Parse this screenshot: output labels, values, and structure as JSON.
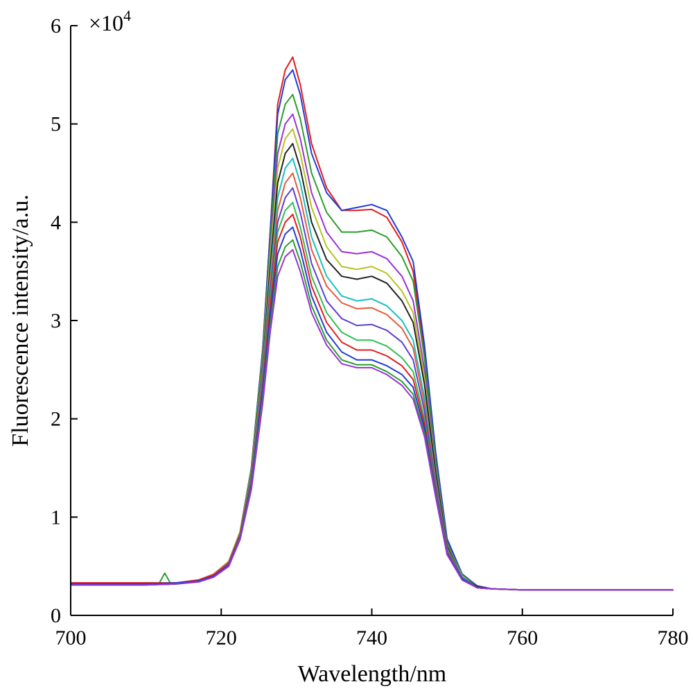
{
  "chart_data": {
    "type": "line",
    "title": "",
    "xlabel": "Wavelength/nm",
    "ylabel": "Fluorescence intensity/a.u.",
    "y_multiplier_base": "×10",
    "y_multiplier_exp": "4",
    "xlim": [
      700,
      780
    ],
    "ylim": [
      0,
      6
    ],
    "x_ticks": [
      "700",
      "720",
      "740",
      "760",
      "780"
    ],
    "y_ticks": [
      "0",
      "1",
      "2",
      "3",
      "4",
      "5",
      "6"
    ],
    "grid": false,
    "legend": "none",
    "colors": [
      "#e41a1c",
      "#1f3bd6",
      "#2a9d2a",
      "#9b30d9",
      "#b5c21e",
      "#222222",
      "#17bfc0",
      "#e65a3a",
      "#5a3fd1",
      "#2fbf4f"
    ],
    "x": [
      700,
      705,
      710,
      714,
      717,
      719,
      721,
      722.5,
      724,
      725.5,
      726.5,
      727.5,
      728.5,
      729.5,
      730.5,
      732,
      734,
      736,
      738,
      740,
      742,
      744,
      745.5,
      747,
      748.5,
      750,
      752,
      754,
      756,
      760,
      770,
      780
    ],
    "series": [
      {
        "values": [
          0.33,
          0.33,
          0.33,
          0.33,
          0.36,
          0.42,
          0.55,
          0.85,
          1.5,
          2.7,
          3.9,
          5.2,
          5.55,
          5.68,
          5.4,
          4.8,
          4.35,
          4.12,
          4.12,
          4.13,
          4.05,
          3.8,
          3.5,
          2.7,
          1.6,
          0.75,
          0.42,
          0.3,
          0.27,
          0.26,
          0.26,
          0.26
        ]
      },
      {
        "values": [
          0.33,
          0.33,
          0.33,
          0.33,
          0.36,
          0.42,
          0.55,
          0.85,
          1.5,
          2.7,
          3.9,
          5.1,
          5.45,
          5.55,
          5.3,
          4.7,
          4.3,
          4.12,
          4.15,
          4.18,
          4.12,
          3.85,
          3.6,
          2.75,
          1.65,
          0.78,
          0.42,
          0.3,
          0.27,
          0.26,
          0.26,
          0.26
        ]
      },
      {
        "values": [
          0.32,
          0.32,
          0.32,
          0.33,
          0.35,
          0.41,
          0.54,
          0.84,
          1.48,
          2.65,
          3.8,
          4.9,
          5.2,
          5.3,
          5.05,
          4.5,
          4.1,
          3.9,
          3.9,
          3.92,
          3.85,
          3.65,
          3.4,
          2.62,
          1.58,
          0.74,
          0.41,
          0.29,
          0.27,
          0.26,
          0.26,
          0.26
        ]
      },
      {
        "values": [
          0.31,
          0.31,
          0.31,
          0.32,
          0.35,
          0.41,
          0.53,
          0.83,
          1.45,
          2.6,
          3.7,
          4.7,
          5.0,
          5.1,
          4.85,
          4.3,
          3.9,
          3.7,
          3.68,
          3.7,
          3.63,
          3.45,
          3.2,
          2.5,
          1.52,
          0.72,
          0.4,
          0.29,
          0.27,
          0.26,
          0.26,
          0.26
        ]
      },
      {
        "values": [
          0.33,
          0.33,
          0.33,
          0.33,
          0.36,
          0.42,
          0.55,
          0.85,
          1.47,
          2.6,
          3.65,
          4.55,
          4.85,
          4.95,
          4.7,
          4.15,
          3.75,
          3.55,
          3.52,
          3.55,
          3.48,
          3.3,
          3.08,
          2.42,
          1.48,
          0.71,
          0.4,
          0.29,
          0.27,
          0.26,
          0.26,
          0.26
        ]
      },
      {
        "values": [
          0.32,
          0.32,
          0.32,
          0.33,
          0.35,
          0.41,
          0.54,
          0.83,
          1.44,
          2.55,
          3.55,
          4.4,
          4.7,
          4.8,
          4.55,
          4.0,
          3.62,
          3.45,
          3.42,
          3.45,
          3.38,
          3.2,
          2.98,
          2.35,
          1.45,
          0.7,
          0.39,
          0.29,
          0.27,
          0.26,
          0.26,
          0.26
        ]
      },
      {
        "values": [
          0.31,
          0.31,
          0.31,
          0.32,
          0.35,
          0.41,
          0.53,
          0.82,
          1.42,
          2.5,
          3.45,
          4.25,
          4.55,
          4.65,
          4.4,
          3.85,
          3.45,
          3.25,
          3.2,
          3.22,
          3.15,
          3.0,
          2.8,
          2.22,
          1.38,
          0.68,
          0.39,
          0.28,
          0.27,
          0.26,
          0.26,
          0.26
        ]
      },
      {
        "values": [
          0.33,
          0.33,
          0.33,
          0.33,
          0.36,
          0.42,
          0.54,
          0.82,
          1.4,
          2.45,
          3.38,
          4.12,
          4.4,
          4.5,
          4.25,
          3.72,
          3.35,
          3.18,
          3.12,
          3.13,
          3.06,
          2.92,
          2.72,
          2.15,
          1.35,
          0.67,
          0.38,
          0.28,
          0.27,
          0.26,
          0.26,
          0.26
        ]
      },
      {
        "values": [
          0.32,
          0.32,
          0.32,
          0.33,
          0.35,
          0.41,
          0.53,
          0.81,
          1.38,
          2.4,
          3.3,
          4.0,
          4.25,
          4.35,
          4.1,
          3.58,
          3.2,
          3.02,
          2.95,
          2.96,
          2.9,
          2.78,
          2.6,
          2.08,
          1.32,
          0.66,
          0.38,
          0.28,
          0.27,
          0.26,
          0.26,
          0.26
        ]
      },
      {
        "values": [
          0.31,
          0.31,
          0.31,
          0.32,
          0.35,
          0.4,
          0.52,
          0.8,
          1.36,
          2.35,
          3.22,
          3.9,
          4.12,
          4.2,
          3.95,
          3.45,
          3.08,
          2.88,
          2.8,
          2.8,
          2.74,
          2.62,
          2.48,
          2.0,
          1.28,
          0.65,
          0.37,
          0.28,
          0.27,
          0.26,
          0.26,
          0.26
        ]
      },
      {
        "values": [
          0.33,
          0.33,
          0.33,
          0.33,
          0.36,
          0.41,
          0.52,
          0.8,
          1.35,
          2.32,
          3.15,
          3.8,
          4.0,
          4.08,
          3.85,
          3.35,
          2.98,
          2.78,
          2.7,
          2.7,
          2.64,
          2.54,
          2.4,
          1.95,
          1.26,
          0.64,
          0.37,
          0.28,
          0.27,
          0.26,
          0.26,
          0.26
        ]
      },
      {
        "values": [
          0.32,
          0.32,
          0.32,
          0.33,
          0.35,
          0.4,
          0.51,
          0.79,
          1.33,
          2.28,
          3.05,
          3.68,
          3.88,
          3.95,
          3.72,
          3.25,
          2.88,
          2.68,
          2.6,
          2.6,
          2.54,
          2.45,
          2.32,
          1.9,
          1.24,
          0.63,
          0.37,
          0.28,
          0.27,
          0.26,
          0.26,
          0.26
        ]
      },
      {
        "values": [
          0.31,
          0.31,
          0.31,
          0.32,
          0.34,
          0.39,
          0.5,
          0.78,
          1.3,
          2.2,
          2.95,
          3.55,
          3.75,
          3.82,
          3.6,
          3.15,
          2.8,
          2.6,
          2.55,
          2.55,
          2.48,
          2.38,
          2.25,
          1.85,
          1.22,
          0.62,
          0.36,
          0.28,
          0.27,
          0.26,
          0.26,
          0.26
        ]
      },
      {
        "values": [
          0.31,
          0.31,
          0.31,
          0.32,
          0.34,
          0.39,
          0.5,
          0.77,
          1.28,
          2.15,
          2.88,
          3.45,
          3.65,
          3.72,
          3.5,
          3.08,
          2.75,
          2.56,
          2.52,
          2.52,
          2.45,
          2.34,
          2.2,
          1.82,
          1.2,
          0.62,
          0.36,
          0.28,
          0.27,
          0.26,
          0.26,
          0.26
        ]
      }
    ],
    "annotations": [
      {
        "x": 712.5,
        "y": 0.43,
        "series_index": 2
      }
    ]
  }
}
